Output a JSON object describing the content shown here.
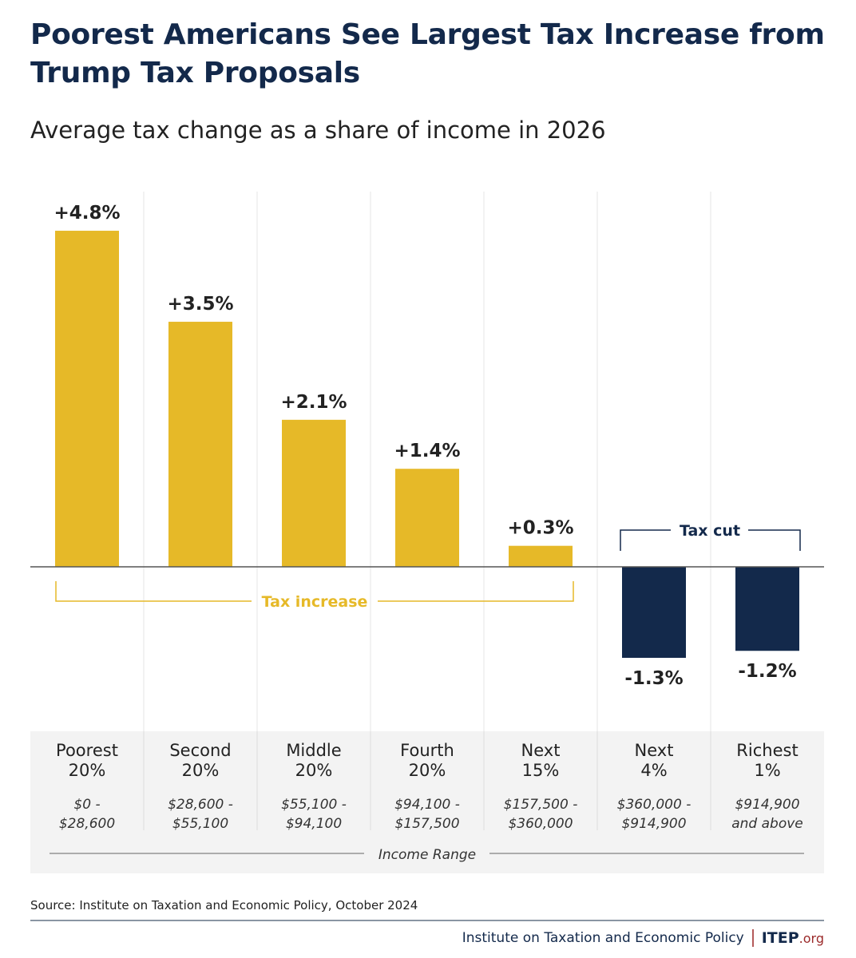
{
  "chart_data": {
    "type": "bar",
    "title": "Poorest Americans See Largest Tax Increase from Trump Tax Proposals",
    "subtitle": "Average tax change as a share of income in 2026",
    "categories": [
      {
        "name": [
          "Poorest",
          "20%"
        ],
        "range": [
          "$0 -",
          "$28,600"
        ]
      },
      {
        "name": [
          "Second",
          "20%"
        ],
        "range": [
          "$28,600 -",
          "$55,100"
        ]
      },
      {
        "name": [
          "Middle",
          "20%"
        ],
        "range": [
          "$55,100 -",
          "$94,100"
        ]
      },
      {
        "name": [
          "Fourth",
          "20%"
        ],
        "range": [
          "$94,100 -",
          "$157,500"
        ]
      },
      {
        "name": [
          "Next",
          "15%"
        ],
        "range": [
          "$157,500 -",
          "$360,000"
        ]
      },
      {
        "name": [
          "Next",
          "4%"
        ],
        "range": [
          "$360,000 -",
          "$914,900"
        ]
      },
      {
        "name": [
          "Richest",
          "1%"
        ],
        "range": [
          "$914,900",
          "and above"
        ]
      }
    ],
    "values": [
      4.8,
      3.5,
      2.1,
      1.4,
      0.3,
      -1.3,
      -1.2
    ],
    "data_labels": [
      "+4.8%",
      "+3.5%",
      "+2.1%",
      "+1.4%",
      "+0.3%",
      "-1.3%",
      "-1.2%"
    ],
    "unit": "%",
    "annotations": {
      "increase": "Tax increase",
      "cut": "Tax cut"
    },
    "xlabel": "Income Range",
    "colors": {
      "increase": "#e6b928",
      "cut": "#13294b"
    },
    "grid": false
  },
  "source": "Source: Institute on Taxation and Economic Policy, October 2024",
  "footer": {
    "org": "Institute on Taxation and Economic Policy",
    "logo": "ITEP",
    "logo_suffix": ".org"
  }
}
